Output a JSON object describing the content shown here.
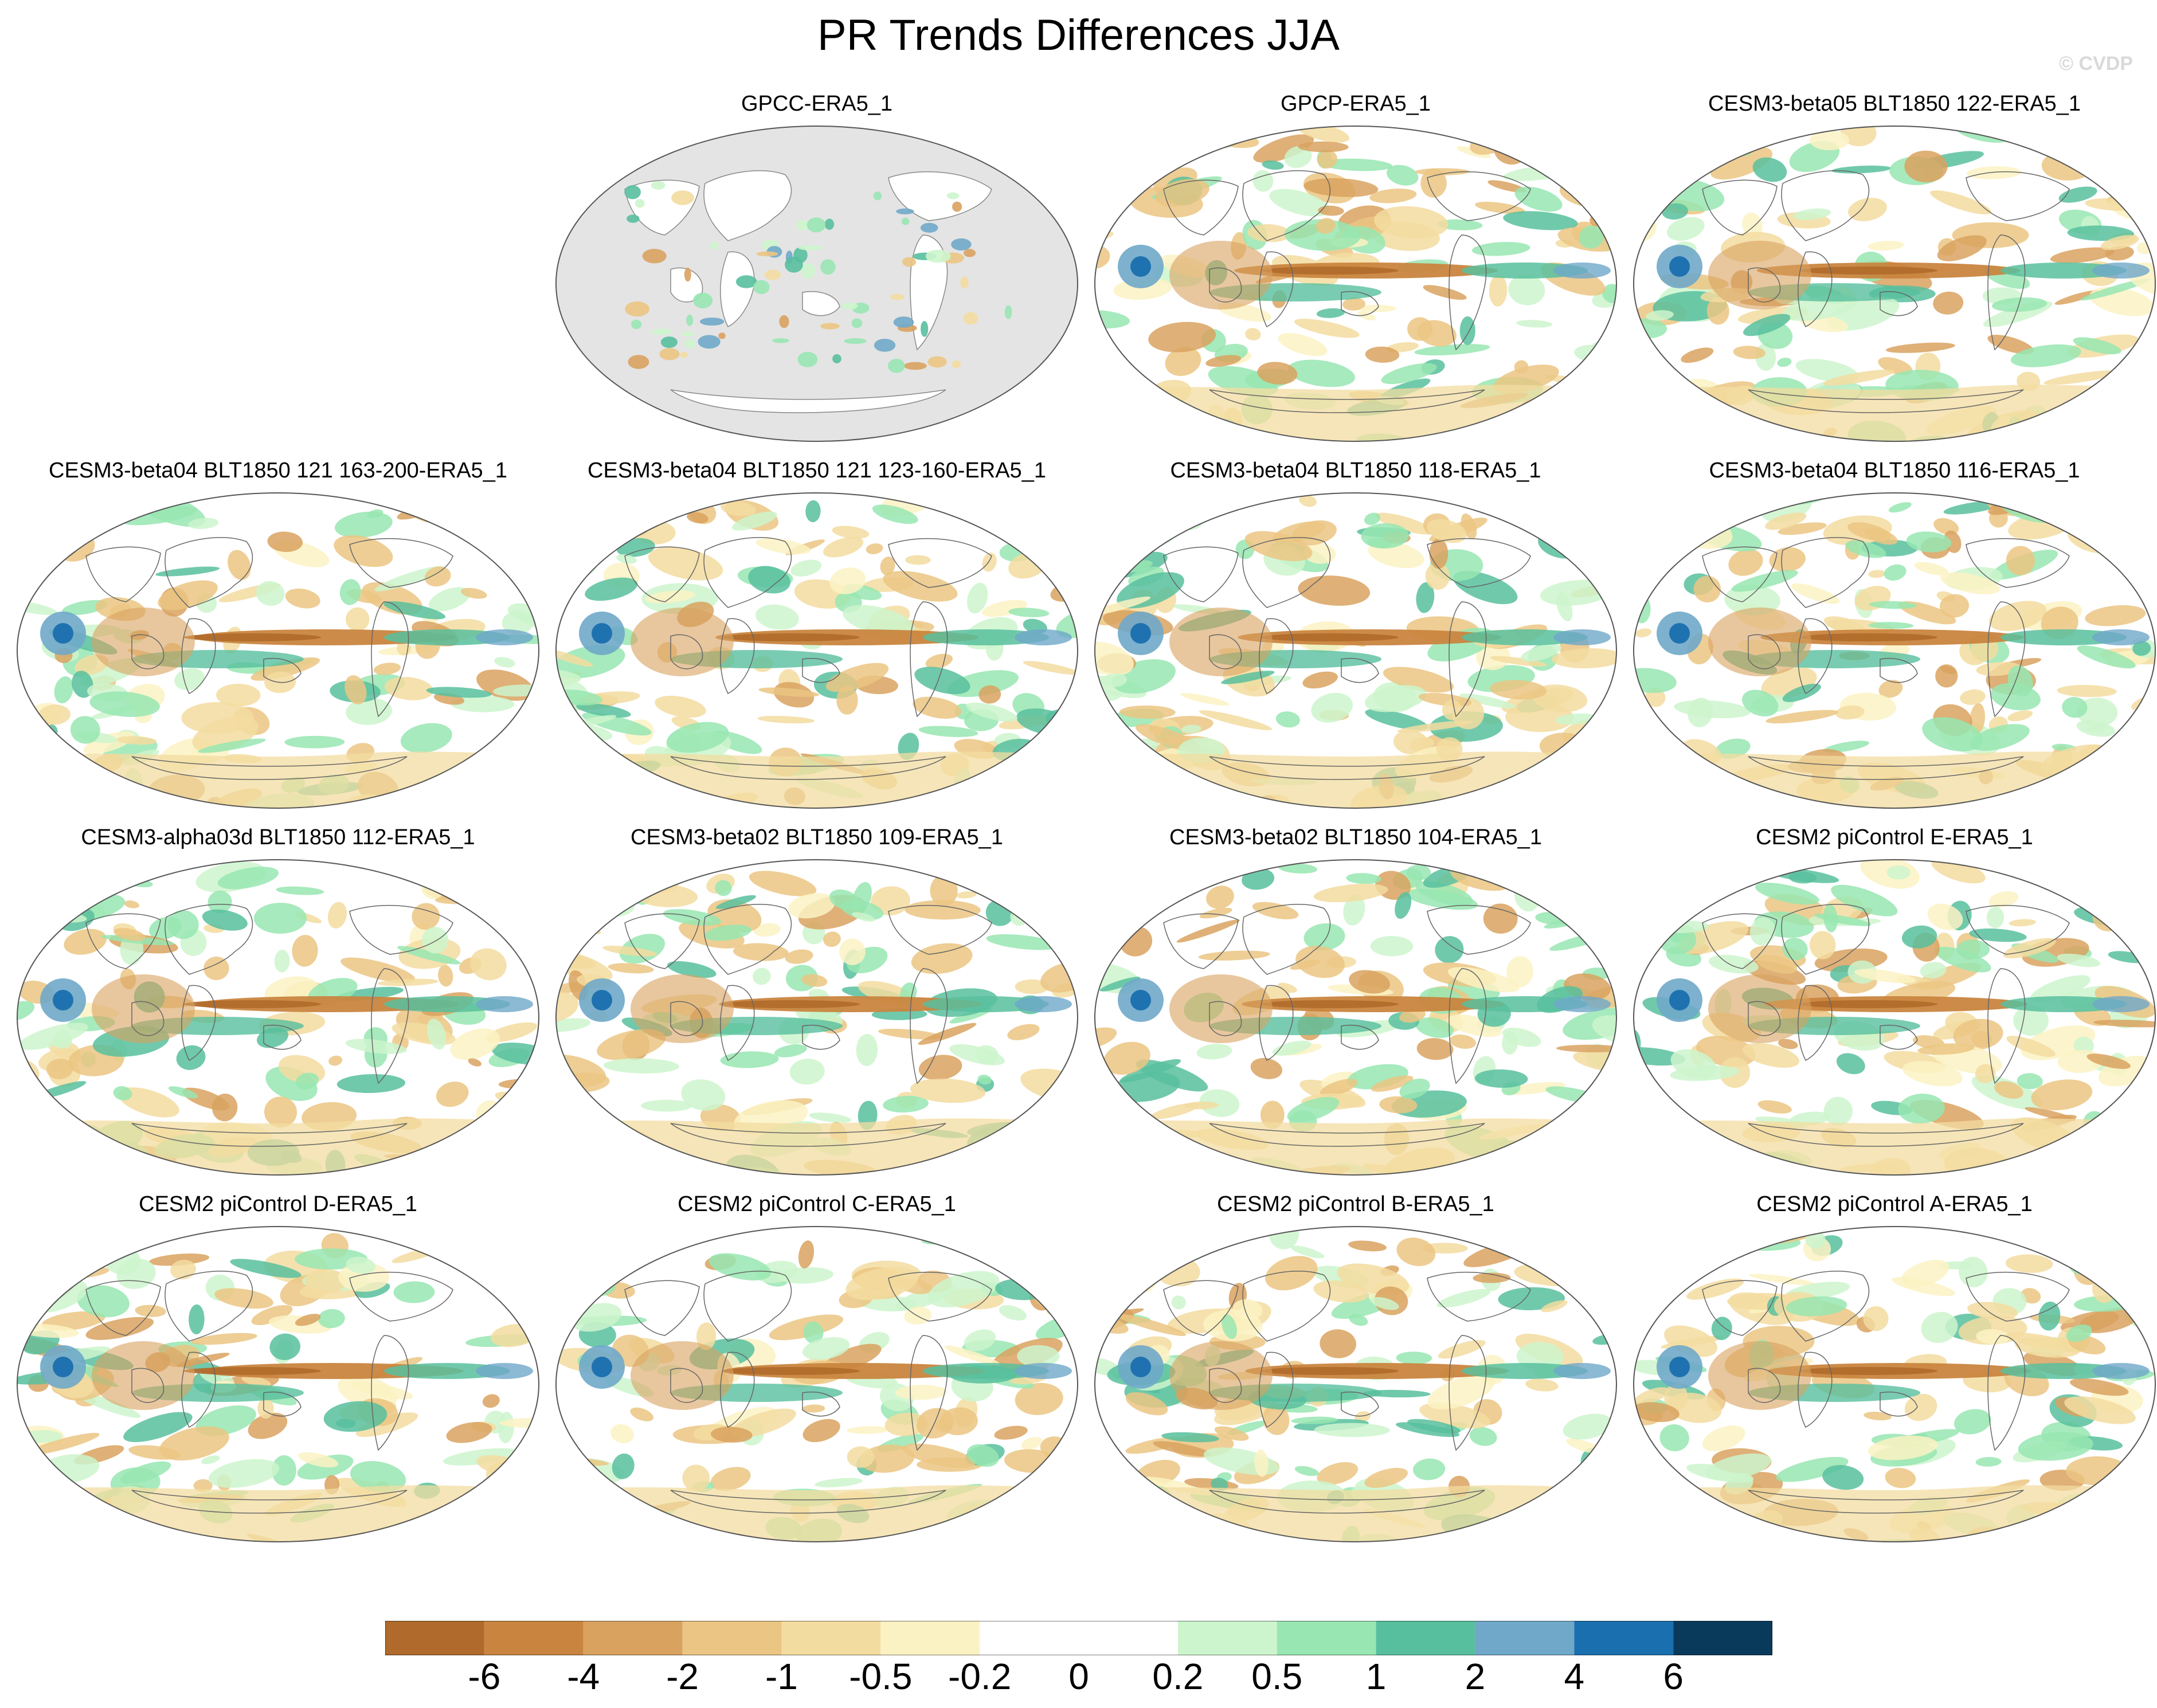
{
  "title": "PR Trends Differences JJA",
  "watermark": "© CVDP",
  "colorbar": {
    "colors": [
      "#b06a2b",
      "#c9853f",
      "#d9a25f",
      "#ebc583",
      "#f3dca0",
      "#fbf2c3",
      "#ffffff",
      "#ffffff",
      "#cdf5cd",
      "#98e6b2",
      "#58bf9e",
      "#6fa8c9",
      "#1a6fae",
      "#093a5c"
    ],
    "labels": [
      "-6",
      "-4",
      "-2",
      "-1",
      "-0.5",
      "-0.2",
      "0",
      "0.2",
      "0.5",
      "1",
      "2",
      "4",
      "6"
    ]
  },
  "panels": [
    {
      "label": "GPCC-ERA5_1",
      "type": "obs"
    },
    {
      "label": "GPCP-ERA5_1",
      "type": "full",
      "seed": 2
    },
    {
      "label": "CESM3-beta05 BLT1850 122-ERA5_1",
      "type": "full",
      "seed": 3
    },
    {
      "label": "CESM3-beta04 BLT1850 121 163-200-ERA5_1",
      "type": "full",
      "seed": 4
    },
    {
      "label": "CESM3-beta04 BLT1850 121 123-160-ERA5_1",
      "type": "full",
      "seed": 5
    },
    {
      "label": "CESM3-beta04 BLT1850 118-ERA5_1",
      "type": "full",
      "seed": 6
    },
    {
      "label": "CESM3-beta04 BLT1850 116-ERA5_1",
      "type": "full",
      "seed": 7
    },
    {
      "label": "CESM3-alpha03d BLT1850 112-ERA5_1",
      "type": "full",
      "seed": 8
    },
    {
      "label": "CESM3-beta02 BLT1850 109-ERA5_1",
      "type": "full",
      "seed": 9
    },
    {
      "label": "CESM3-beta02 BLT1850 104-ERA5_1",
      "type": "full",
      "seed": 10
    },
    {
      "label": "CESM2 piControl E-ERA5_1",
      "type": "full",
      "seed": 11
    },
    {
      "label": "CESM2 piControl D-ERA5_1",
      "type": "full",
      "seed": 12
    },
    {
      "label": "CESM2 piControl C-ERA5_1",
      "type": "full",
      "seed": 13
    },
    {
      "label": "CESM2 piControl B-ERA5_1",
      "type": "full",
      "seed": 14
    },
    {
      "label": "CESM2 piControl A-ERA5_1",
      "type": "full",
      "seed": 15
    }
  ]
}
